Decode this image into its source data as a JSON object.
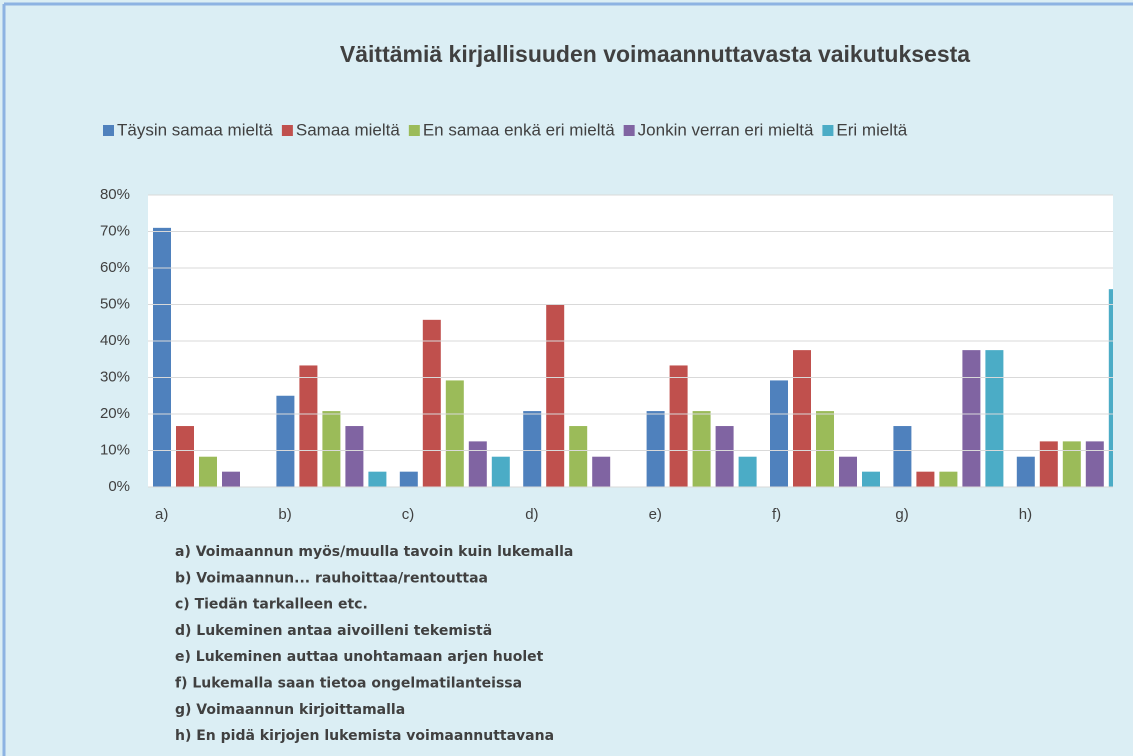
{
  "chart_data": {
    "type": "bar",
    "title": "Väittämiä kirjallisuuden voimaannuttavasta vaikutuksesta",
    "categories": [
      "a)",
      "b)",
      "c)",
      "d)",
      "e)",
      "f)",
      "g)",
      "h)"
    ],
    "series": [
      {
        "name": "Täysin samaa mieltä",
        "color": "#4f81bd",
        "values": [
          71,
          25,
          4.2,
          20.8,
          20.8,
          29.2,
          16.7,
          8.3
        ]
      },
      {
        "name": "Samaa mieltä",
        "color": "#c0504d",
        "values": [
          16.7,
          33.3,
          45.8,
          50,
          33.3,
          37.5,
          4.2,
          12.5
        ]
      },
      {
        "name": "En samaa enkä eri mieltä",
        "color": "#9bbb59",
        "values": [
          8.3,
          20.8,
          29.2,
          16.7,
          20.8,
          20.8,
          4.2,
          12.5
        ]
      },
      {
        "name": "Jonkin verran eri mieltä",
        "color": "#8064a2",
        "values": [
          4.2,
          16.7,
          12.5,
          8.3,
          16.7,
          8.3,
          37.5,
          12.5
        ]
      },
      {
        "name": "Eri mieltä",
        "color": "#4bacc6",
        "values": [
          0,
          4.2,
          8.3,
          0,
          8.3,
          4.2,
          37.5,
          54.2
        ]
      }
    ],
    "ylim": [
      0,
      80
    ],
    "yticks": [
      {
        "value": 0,
        "label": "0%"
      },
      {
        "value": 10,
        "label": "10%"
      },
      {
        "value": 20,
        "label": "20%"
      },
      {
        "value": 30,
        "label": "30%"
      },
      {
        "value": 40,
        "label": "40%"
      },
      {
        "value": 50,
        "label": "50%"
      },
      {
        "value": 60,
        "label": "60%"
      },
      {
        "value": 70,
        "label": "70%"
      },
      {
        "value": 80,
        "label": "80%"
      }
    ],
    "grid": true,
    "legend": "top",
    "annotations": [
      "a) Voimaannun myös/muulla tavoin kuin lukemalla",
      "b) Voimaannun... rauhoittaa/rentouttaa",
      "c) Tiedän tarkalleen etc.",
      "d) Lukeminen antaa aivoilleni tekemistä",
      "e) Lukeminen auttaa unohtamaan arjen huolet",
      "f) Lukemalla saan tietoa ongelmatilanteissa",
      "g) Voimaannun kirjoittamalla",
      "h) En pidä kirjojen lukemista voimaannuttavana"
    ]
  }
}
